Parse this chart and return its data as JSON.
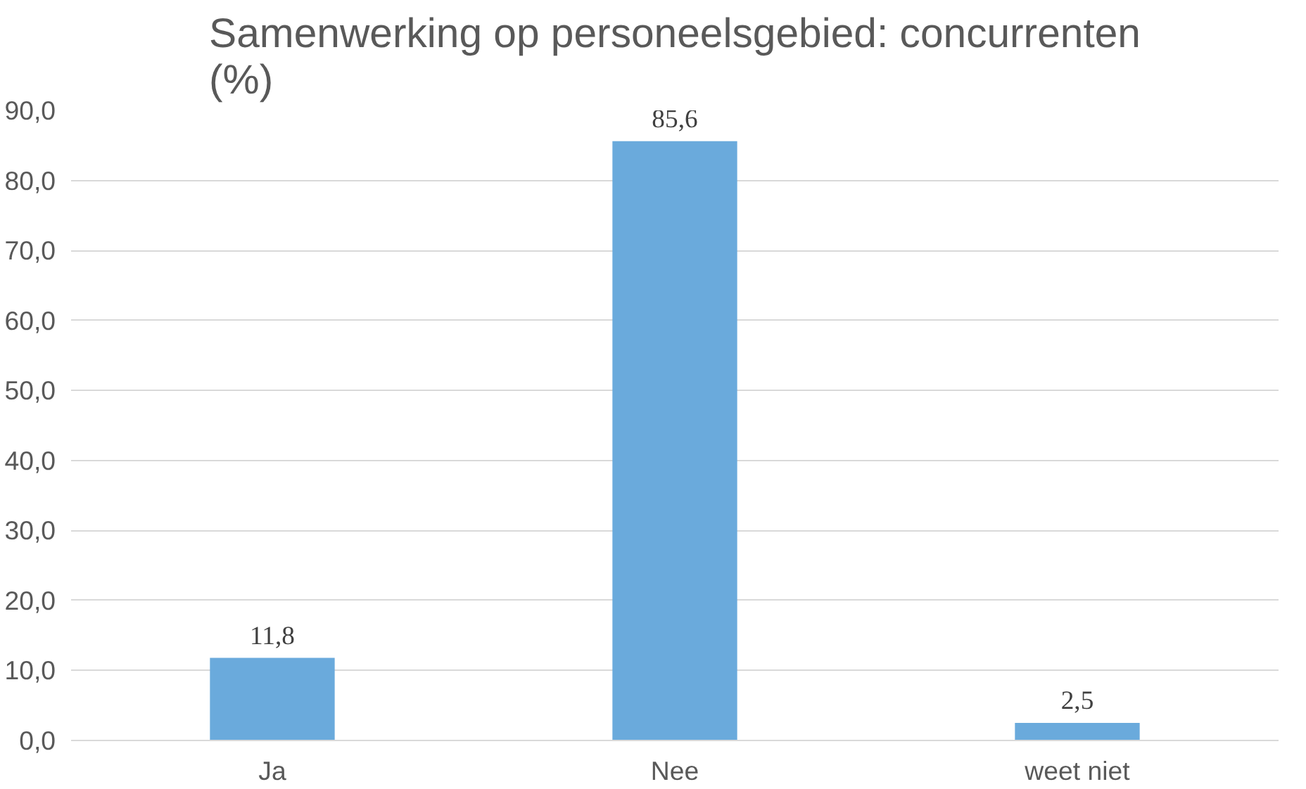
{
  "chart_data": {
    "type": "bar",
    "title": "Samenwerking op personeelsgebied: concurrenten\n(%)",
    "categories": [
      "Ja",
      "Nee",
      "weet niet"
    ],
    "values": [
      11.8,
      85.6,
      2.5
    ],
    "value_labels": [
      "11,8",
      "85,6",
      "2,5"
    ],
    "color": "#6aaadc",
    "ylim": [
      0,
      90
    ],
    "yticks": [
      {
        "value": 0,
        "label": "0,0"
      },
      {
        "value": 10,
        "label": "10,0"
      },
      {
        "value": 20,
        "label": "20,0"
      },
      {
        "value": 30,
        "label": "30,0"
      },
      {
        "value": 40,
        "label": "40,0"
      },
      {
        "value": 50,
        "label": "50,0"
      },
      {
        "value": 60,
        "label": "60,0"
      },
      {
        "value": 70,
        "label": "70,0"
      },
      {
        "value": 80,
        "label": "80,0"
      },
      {
        "value": 90,
        "label": "90,0"
      }
    ],
    "grid": "y"
  }
}
